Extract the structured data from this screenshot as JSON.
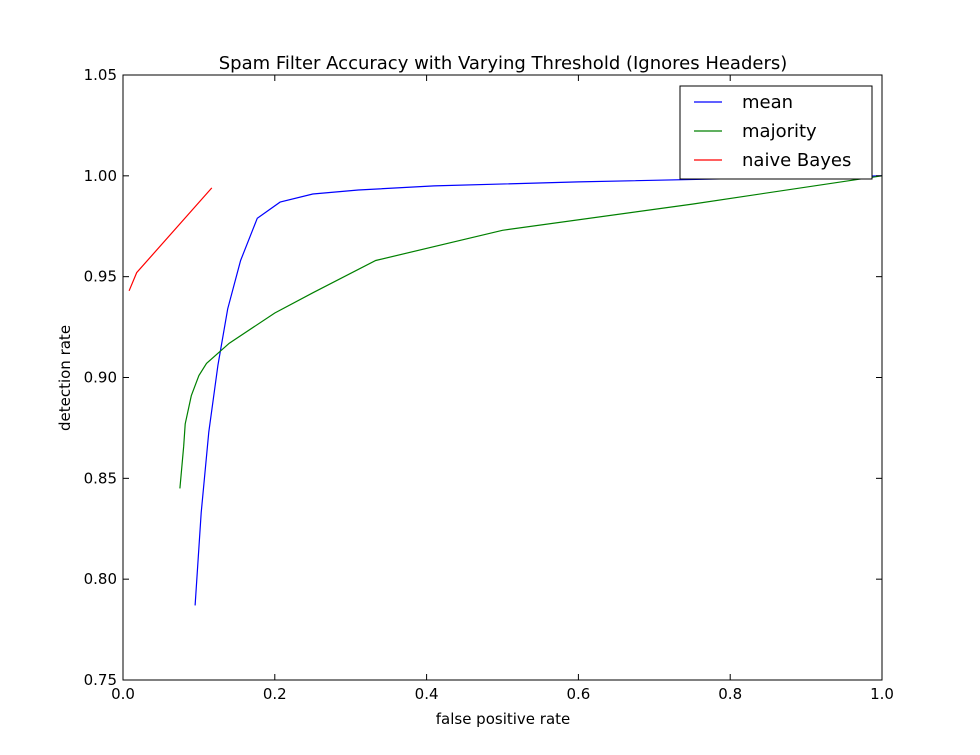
{
  "chart_data": {
    "type": "line",
    "title": "Spam Filter Accuracy with Varying Threshold (Ignores Headers)",
    "xlabel": "false positive rate",
    "ylabel": "detection rate",
    "xlim": [
      0.0,
      1.0
    ],
    "ylim": [
      0.75,
      1.05
    ],
    "xticks": [
      "0.0",
      "0.2",
      "0.4",
      "0.6",
      "0.8",
      "1.0"
    ],
    "yticks": [
      "0.75",
      "0.80",
      "0.85",
      "0.90",
      "0.95",
      "1.00",
      "1.05"
    ],
    "grid": false,
    "legend_position": "top-right",
    "series": [
      {
        "name": "mean",
        "color": "#0000ff",
        "x": [
          0.095,
          0.103,
          0.113,
          0.125,
          0.138,
          0.155,
          0.177,
          0.207,
          0.25,
          0.31,
          0.41,
          0.6,
          0.85,
          1.0
        ],
        "y": [
          0.787,
          0.833,
          0.873,
          0.906,
          0.934,
          0.958,
          0.979,
          0.987,
          0.991,
          0.993,
          0.995,
          0.997,
          0.999,
          1.0
        ]
      },
      {
        "name": "majority",
        "color": "#008000",
        "x": [
          0.075,
          0.08,
          0.082,
          0.09,
          0.1,
          0.11,
          0.14,
          0.2,
          0.25,
          0.333,
          0.5,
          0.75,
          1.0
        ],
        "y": [
          0.845,
          0.866,
          0.877,
          0.891,
          0.901,
          0.907,
          0.917,
          0.932,
          0.942,
          0.958,
          0.973,
          0.986,
          1.0
        ]
      },
      {
        "name": "naive Bayes",
        "color": "#ff0000",
        "x": [
          0.008,
          0.018,
          0.117
        ],
        "y": [
          0.943,
          0.952,
          0.994
        ]
      }
    ]
  }
}
